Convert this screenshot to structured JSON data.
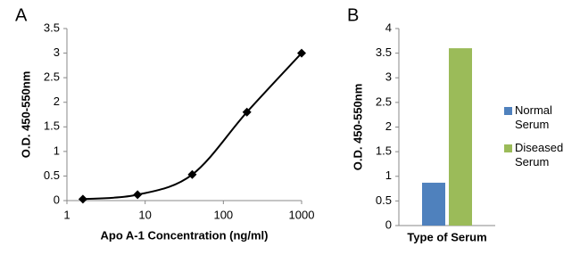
{
  "chart_data": [
    {
      "type": "line",
      "label": "A",
      "x_label": "Apo A-1 Concentration (ng/ml)",
      "y_label": "O.D. 450-550nm",
      "x": [
        1.6,
        8,
        40,
        200,
        1000
      ],
      "values": [
        0.03,
        0.12,
        0.53,
        1.8,
        3.0
      ],
      "color": "#000000",
      "xlog": true,
      "xlim": [
        1,
        1000
      ],
      "xticks": [
        1,
        10,
        100,
        1000
      ],
      "ylim": [
        0,
        3.5
      ],
      "yticks": [
        0,
        0.5,
        1,
        1.5,
        2,
        2.5,
        3,
        3.5
      ],
      "smooth": true,
      "marker": "diamond"
    },
    {
      "type": "bar",
      "label": "B",
      "x_label": "Type of Serum",
      "y_label": "O.D. 450-550nm",
      "series": [
        {
          "name": "Normal Serum",
          "color": "#4f81bd",
          "values": [
            0.87
          ]
        },
        {
          "name": "Diseased Serum",
          "color": "#9bbb59",
          "values": [
            3.6
          ]
        }
      ],
      "ylim": [
        0,
        4
      ],
      "yticks": [
        0,
        0.5,
        1,
        1.5,
        2,
        2.5,
        3,
        3.5,
        4
      ],
      "legend": "right"
    }
  ]
}
